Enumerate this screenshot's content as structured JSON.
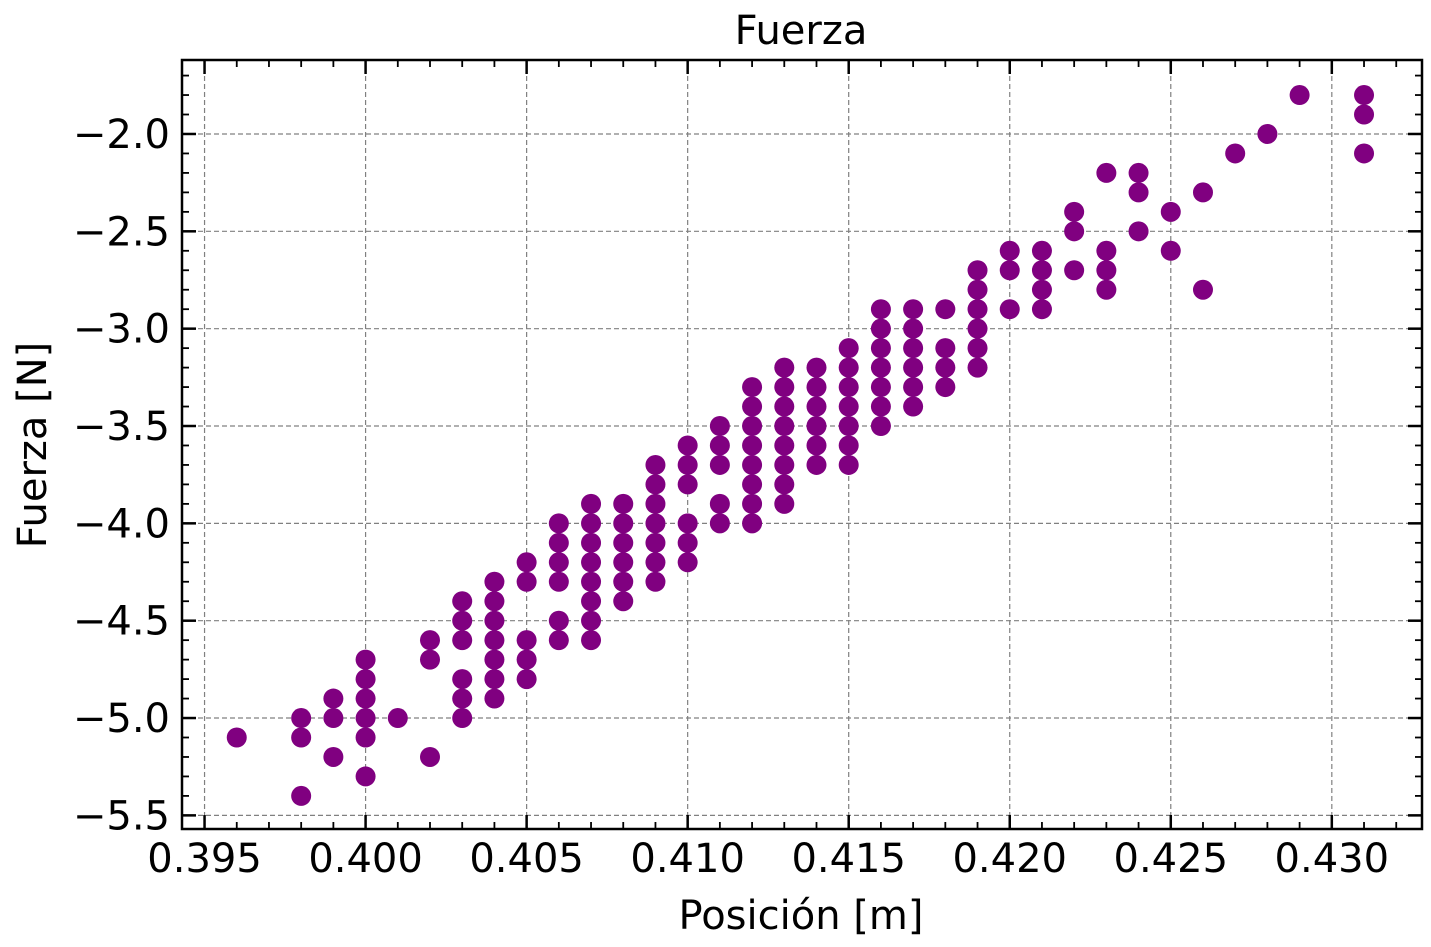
{
  "chart_data": {
    "type": "scatter",
    "title": "Fuerza",
    "xlabel": "Posición [m]",
    "ylabel": "Fuerza [N]",
    "xlim": [
      0.3943,
      0.4328
    ],
    "ylim": [
      -5.57,
      -1.62
    ],
    "xticks": [
      0.395,
      0.4,
      0.405,
      0.41,
      0.415,
      0.42,
      0.425,
      0.43
    ],
    "xtick_labels": [
      "0.395",
      "0.400",
      "0.405",
      "0.410",
      "0.415",
      "0.420",
      "0.425",
      "0.430"
    ],
    "yticks": [
      -2.0,
      -2.5,
      -3.0,
      -3.5,
      -4.0,
      -4.5,
      -5.0,
      -5.5
    ],
    "ytick_labels": [
      "−2.0",
      "−2.5",
      "−3.0",
      "−3.5",
      "−4.0",
      "−4.5",
      "−5.0",
      "−5.5"
    ],
    "grid": true,
    "marker_color": "#800080",
    "points": [
      [
        0.396,
        -5.1
      ],
      [
        0.398,
        -5.0
      ],
      [
        0.398,
        -5.1
      ],
      [
        0.398,
        -5.4
      ],
      [
        0.399,
        -4.9
      ],
      [
        0.399,
        -5.0
      ],
      [
        0.399,
        -5.2
      ],
      [
        0.4,
        -4.7
      ],
      [
        0.4,
        -4.8
      ],
      [
        0.4,
        -4.9
      ],
      [
        0.4,
        -5.0
      ],
      [
        0.4,
        -5.1
      ],
      [
        0.4,
        -5.3
      ],
      [
        0.401,
        -5.0
      ],
      [
        0.402,
        -4.6
      ],
      [
        0.402,
        -4.7
      ],
      [
        0.402,
        -5.2
      ],
      [
        0.403,
        -4.4
      ],
      [
        0.403,
        -4.5
      ],
      [
        0.403,
        -4.6
      ],
      [
        0.403,
        -4.8
      ],
      [
        0.403,
        -4.9
      ],
      [
        0.403,
        -5.0
      ],
      [
        0.404,
        -4.3
      ],
      [
        0.404,
        -4.4
      ],
      [
        0.404,
        -4.5
      ],
      [
        0.404,
        -4.6
      ],
      [
        0.404,
        -4.7
      ],
      [
        0.404,
        -4.8
      ],
      [
        0.404,
        -4.9
      ],
      [
        0.405,
        -4.2
      ],
      [
        0.405,
        -4.3
      ],
      [
        0.405,
        -4.6
      ],
      [
        0.405,
        -4.7
      ],
      [
        0.405,
        -4.8
      ],
      [
        0.406,
        -4.0
      ],
      [
        0.406,
        -4.1
      ],
      [
        0.406,
        -4.2
      ],
      [
        0.406,
        -4.3
      ],
      [
        0.406,
        -4.5
      ],
      [
        0.406,
        -4.6
      ],
      [
        0.407,
        -3.9
      ],
      [
        0.407,
        -4.0
      ],
      [
        0.407,
        -4.1
      ],
      [
        0.407,
        -4.2
      ],
      [
        0.407,
        -4.3
      ],
      [
        0.407,
        -4.4
      ],
      [
        0.407,
        -4.5
      ],
      [
        0.407,
        -4.6
      ],
      [
        0.408,
        -3.9
      ],
      [
        0.408,
        -4.0
      ],
      [
        0.408,
        -4.1
      ],
      [
        0.408,
        -4.2
      ],
      [
        0.408,
        -4.3
      ],
      [
        0.408,
        -4.4
      ],
      [
        0.409,
        -3.7
      ],
      [
        0.409,
        -3.8
      ],
      [
        0.409,
        -3.9
      ],
      [
        0.409,
        -4.0
      ],
      [
        0.409,
        -4.1
      ],
      [
        0.409,
        -4.2
      ],
      [
        0.409,
        -4.3
      ],
      [
        0.41,
        -3.6
      ],
      [
        0.41,
        -3.7
      ],
      [
        0.41,
        -3.8
      ],
      [
        0.41,
        -4.0
      ],
      [
        0.41,
        -4.1
      ],
      [
        0.41,
        -4.2
      ],
      [
        0.411,
        -3.5
      ],
      [
        0.411,
        -3.6
      ],
      [
        0.411,
        -3.7
      ],
      [
        0.411,
        -3.9
      ],
      [
        0.411,
        -4.0
      ],
      [
        0.412,
        -3.3
      ],
      [
        0.412,
        -3.4
      ],
      [
        0.412,
        -3.5
      ],
      [
        0.412,
        -3.6
      ],
      [
        0.412,
        -3.7
      ],
      [
        0.412,
        -3.8
      ],
      [
        0.412,
        -3.9
      ],
      [
        0.412,
        -4.0
      ],
      [
        0.413,
        -3.2
      ],
      [
        0.413,
        -3.3
      ],
      [
        0.413,
        -3.4
      ],
      [
        0.413,
        -3.5
      ],
      [
        0.413,
        -3.6
      ],
      [
        0.413,
        -3.7
      ],
      [
        0.413,
        -3.8
      ],
      [
        0.413,
        -3.9
      ],
      [
        0.414,
        -3.2
      ],
      [
        0.414,
        -3.3
      ],
      [
        0.414,
        -3.4
      ],
      [
        0.414,
        -3.5
      ],
      [
        0.414,
        -3.6
      ],
      [
        0.414,
        -3.7
      ],
      [
        0.415,
        -3.1
      ],
      [
        0.415,
        -3.2
      ],
      [
        0.415,
        -3.3
      ],
      [
        0.415,
        -3.4
      ],
      [
        0.415,
        -3.5
      ],
      [
        0.415,
        -3.6
      ],
      [
        0.415,
        -3.7
      ],
      [
        0.416,
        -2.9
      ],
      [
        0.416,
        -3.0
      ],
      [
        0.416,
        -3.1
      ],
      [
        0.416,
        -3.2
      ],
      [
        0.416,
        -3.3
      ],
      [
        0.416,
        -3.4
      ],
      [
        0.416,
        -3.5
      ],
      [
        0.417,
        -2.9
      ],
      [
        0.417,
        -3.0
      ],
      [
        0.417,
        -3.1
      ],
      [
        0.417,
        -3.2
      ],
      [
        0.417,
        -3.3
      ],
      [
        0.417,
        -3.4
      ],
      [
        0.418,
        -2.9
      ],
      [
        0.418,
        -3.1
      ],
      [
        0.418,
        -3.2
      ],
      [
        0.418,
        -3.3
      ],
      [
        0.419,
        -2.7
      ],
      [
        0.419,
        -2.8
      ],
      [
        0.419,
        -2.9
      ],
      [
        0.419,
        -3.0
      ],
      [
        0.419,
        -3.1
      ],
      [
        0.419,
        -3.2
      ],
      [
        0.42,
        -2.6
      ],
      [
        0.42,
        -2.7
      ],
      [
        0.42,
        -2.9
      ],
      [
        0.421,
        -2.6
      ],
      [
        0.421,
        -2.7
      ],
      [
        0.421,
        -2.8
      ],
      [
        0.421,
        -2.9
      ],
      [
        0.422,
        -2.4
      ],
      [
        0.422,
        -2.5
      ],
      [
        0.422,
        -2.7
      ],
      [
        0.423,
        -2.2
      ],
      [
        0.423,
        -2.6
      ],
      [
        0.423,
        -2.7
      ],
      [
        0.423,
        -2.8
      ],
      [
        0.424,
        -2.2
      ],
      [
        0.424,
        -2.3
      ],
      [
        0.424,
        -2.5
      ],
      [
        0.425,
        -2.4
      ],
      [
        0.425,
        -2.6
      ],
      [
        0.426,
        -2.3
      ],
      [
        0.426,
        -2.8
      ],
      [
        0.427,
        -2.1
      ],
      [
        0.428,
        -2.0
      ],
      [
        0.429,
        -1.8
      ],
      [
        0.431,
        -1.8
      ],
      [
        0.431,
        -1.9
      ],
      [
        0.431,
        -2.1
      ]
    ]
  }
}
